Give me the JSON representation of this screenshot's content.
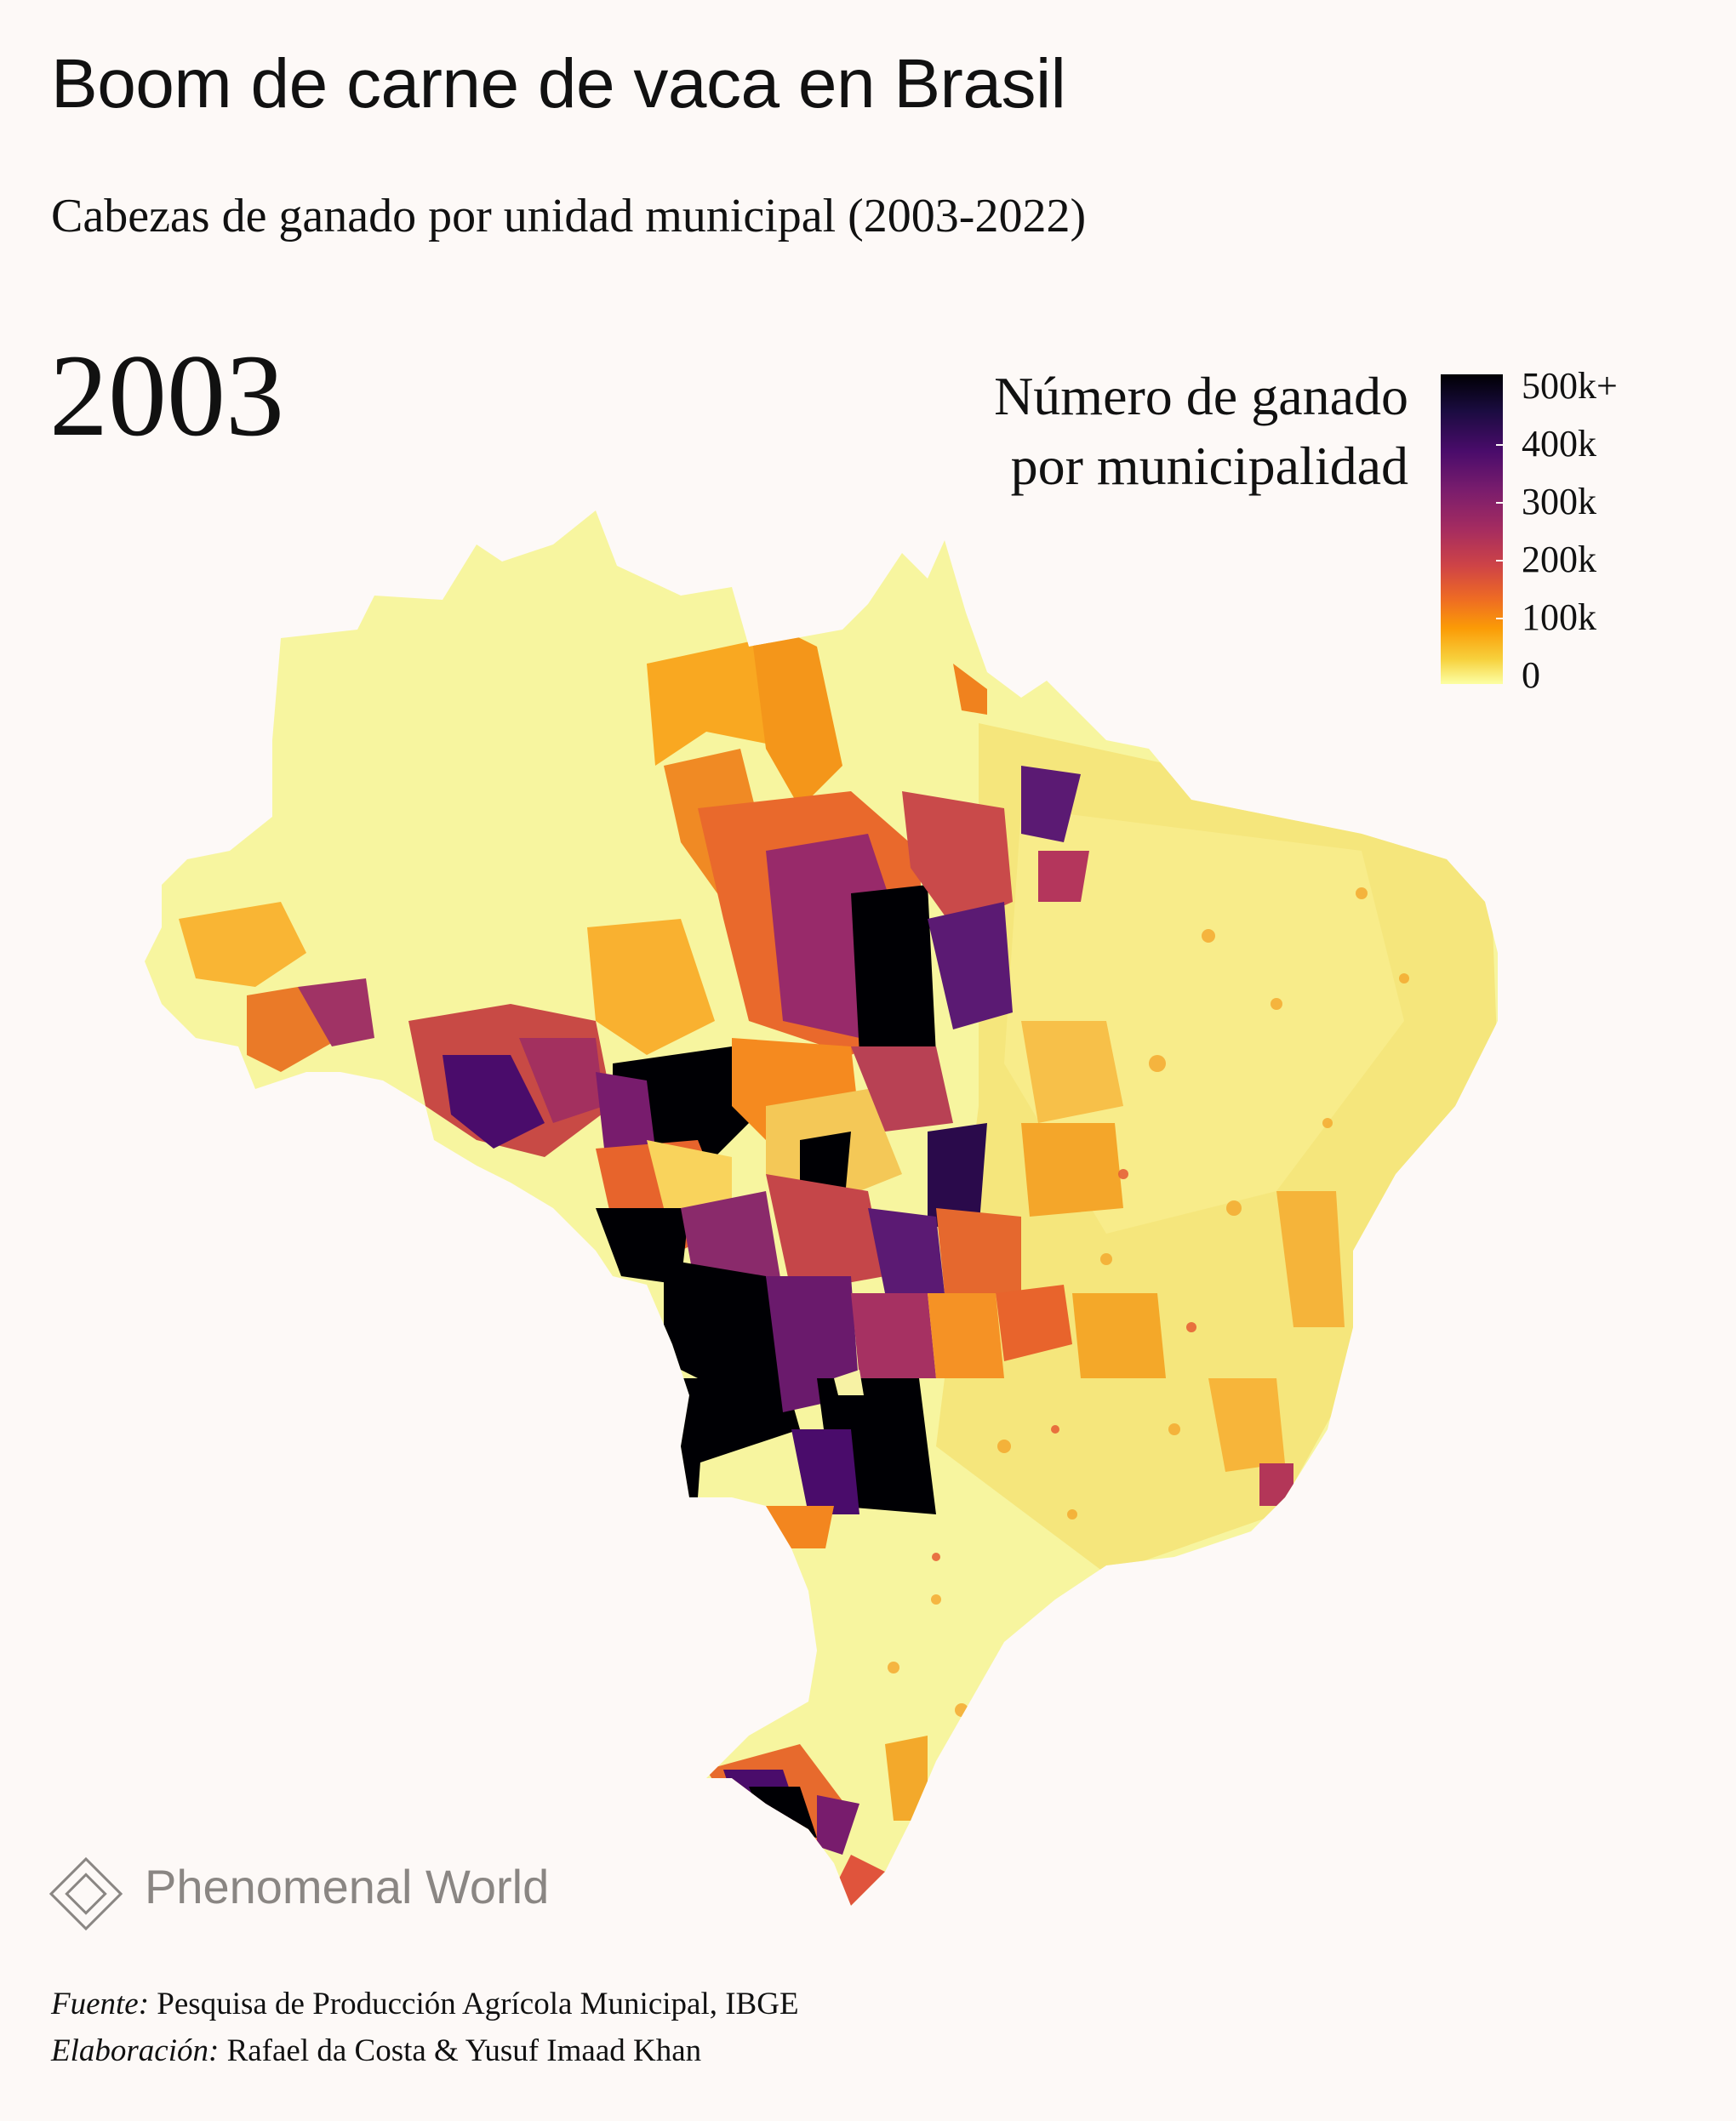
{
  "title": "Boom de carne de vaca en Brasil",
  "subtitle": "Cabezas de ganado por unidad municipal (2003-2022)",
  "year": "2003",
  "legend": {
    "title_line1": "Número de ganado",
    "title_line2": "por municipalidad",
    "ticks": [
      "500k+",
      "400k",
      "300k",
      "200k",
      "100k",
      "0"
    ],
    "colors": [
      "#000004",
      "#4a0c6b",
      "#a52c60",
      "#ed6925",
      "#fb9b06",
      "#fcffa4"
    ]
  },
  "logo": {
    "text": "Phenomenal World"
  },
  "credits": {
    "source_label": "Fuente:",
    "source_text": "Pesquisa de Producción Agrícola Municipal, IBGE",
    "author_label": "Elaboración:",
    "author_text": "Rafael da Costa & Yusuf Imaad Khan"
  },
  "map": {
    "country": "Brasil",
    "regions": [
      {
        "name": "north-amazon",
        "level": "low",
        "color": "#f7f29a"
      },
      {
        "name": "northeast",
        "level": "low-mid",
        "color": "#f6e27a"
      },
      {
        "name": "para-south",
        "level": "high",
        "color": "#9a2f6a"
      },
      {
        "name": "mato-grosso",
        "level": "very-high",
        "color": "#000004"
      },
      {
        "name": "goias",
        "level": "high",
        "color": "#5b1a73"
      },
      {
        "name": "southeast",
        "level": "low-mid",
        "color": "#f4e06a"
      },
      {
        "name": "rio-grande-do-sul",
        "level": "high",
        "color": "#4a0c6b"
      }
    ]
  }
}
